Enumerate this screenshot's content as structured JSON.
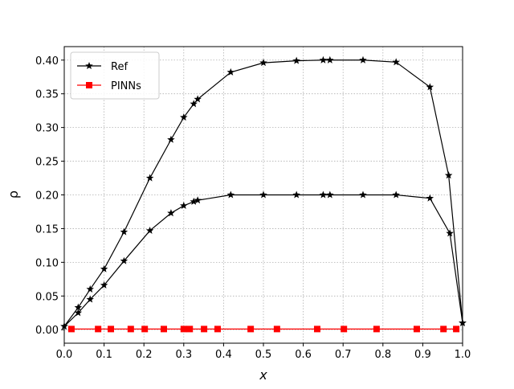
{
  "chart_data": {
    "type": "line",
    "xlabel": "x",
    "ylabel": "ρ",
    "xlim": [
      0,
      1
    ],
    "ylim": [
      -0.02,
      0.42
    ],
    "xticks": [
      {
        "value": 0,
        "label": "0.0"
      },
      0.1,
      0.2,
      0.3,
      0.4,
      0.5,
      0.6,
      0.7,
      0.8,
      0.9,
      {
        "value": 1,
        "label": "1.0"
      }
    ],
    "yticks": [
      {
        "value": 0,
        "label": "0.00"
      },
      {
        "value": 0.05,
        "label": "0.05"
      },
      {
        "value": 0.1,
        "label": "0.10"
      },
      {
        "value": 0.15,
        "label": "0.15"
      },
      {
        "value": 0.2,
        "label": "0.20"
      },
      {
        "value": 0.25,
        "label": "0.25"
      },
      {
        "value": 0.3,
        "label": "0.30"
      },
      {
        "value": 0.35,
        "label": "0.35"
      },
      {
        "value": 0.4,
        "label": "0.40"
      }
    ],
    "grid": true,
    "legend": "upper left",
    "series": [
      {
        "name": "Ref",
        "color": "#000000",
        "marker": "star",
        "x": [
          0,
          0.035,
          0.065,
          0.1,
          0.15,
          0.215,
          0.268,
          0.3,
          0.325,
          0.335,
          0.418,
          0.5,
          0.583,
          0.65,
          0.667,
          0.75,
          0.833,
          0.918,
          0.965,
          1
        ],
        "values": [
          0.005,
          0.033,
          0.06,
          0.09,
          0.145,
          0.225,
          0.282,
          0.315,
          0.335,
          0.342,
          0.382,
          0.396,
          0.399,
          0.4,
          0.4,
          0.4,
          0.397,
          0.36,
          0.229,
          0.01
        ]
      },
      {
        "color": "#000000",
        "marker": "star",
        "x": [
          0,
          0.035,
          0.065,
          0.1,
          0.15,
          0.215,
          0.268,
          0.3,
          0.325,
          0.335,
          0.418,
          0.5,
          0.583,
          0.65,
          0.667,
          0.75,
          0.833,
          0.918,
          0.968,
          1
        ],
        "values": [
          0.005,
          0.025,
          0.045,
          0.066,
          0.102,
          0.147,
          0.173,
          0.184,
          0.19,
          0.192,
          0.2,
          0.2,
          0.2,
          0.2,
          0.2,
          0.2,
          0.2,
          0.195,
          0.143,
          0.01
        ]
      },
      {
        "name": "PINNs",
        "color": "#ff0000",
        "marker": "square",
        "x": [
          0.018,
          0.085,
          0.117,
          0.167,
          0.202,
          0.25,
          0.3,
          0.315,
          0.351,
          0.385,
          0.468,
          0.534,
          0.635,
          0.702,
          0.784,
          0.885,
          0.952,
          0.984
        ],
        "values": [
          0.001,
          0.001,
          0.001,
          0.001,
          0.001,
          0.001,
          0.001,
          0.001,
          0.001,
          0.001,
          0.001,
          0.001,
          0.001,
          0.001,
          0.001,
          0.001,
          0.001,
          0.001
        ]
      }
    ]
  }
}
